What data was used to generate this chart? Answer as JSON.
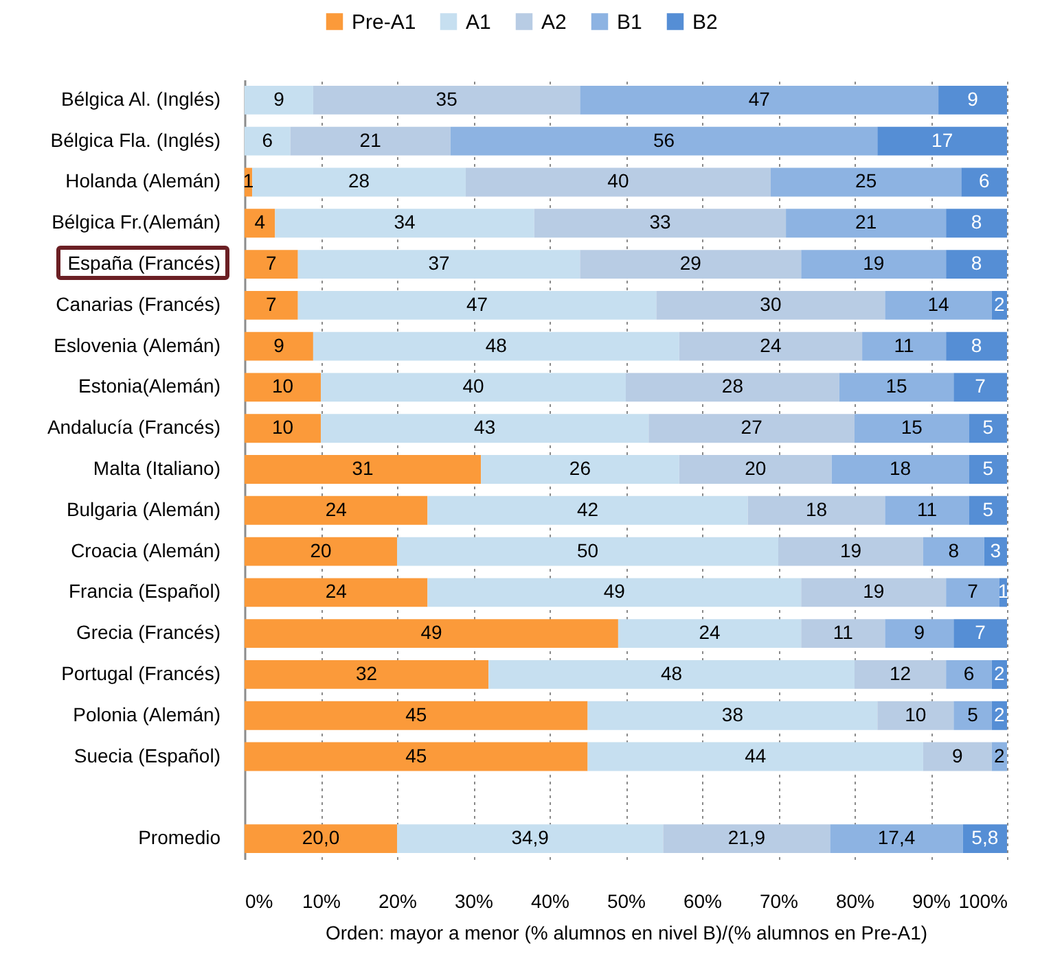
{
  "chart_data": {
    "type": "bar",
    "orientation": "horizontal",
    "stacked": true,
    "categories": [
      "Bélgica Al. (Inglés)",
      "Bélgica Fla. (Inglés)",
      "Holanda (Alemán)",
      "Bélgica Fr.(Alemán)",
      "España (Francés)",
      "Canarias (Francés)",
      "Eslovenia (Alemán)",
      "Estonia(Alemán)",
      "Andalucía (Francés)",
      "Malta (Italiano)",
      "Bulgaria (Alemán)",
      "Croacia (Alemán)",
      "Francia (Español)",
      "Grecia (Francés)",
      "Portugal (Francés)",
      "Polonia (Alemán)",
      "Suecia (Español)",
      null,
      "Promedio"
    ],
    "series": [
      {
        "name": "Pre-A1",
        "color": "#fb9a3a",
        "values": [
          null,
          null,
          1,
          4,
          7,
          7,
          9,
          10,
          10,
          31,
          24,
          20,
          24,
          49,
          32,
          45,
          45,
          null,
          20.0
        ],
        "value_labels": [
          null,
          null,
          "1",
          "4",
          "7",
          "7",
          "9",
          "10",
          "10",
          "31",
          "24",
          "20",
          "24",
          "49",
          "32",
          "45",
          "45",
          null,
          "20,0"
        ]
      },
      {
        "name": "A1",
        "color": "#c6dff0",
        "values": [
          9,
          6,
          28,
          34,
          37,
          47,
          48,
          40,
          43,
          26,
          42,
          50,
          49,
          24,
          48,
          38,
          44,
          null,
          34.9
        ],
        "value_labels": [
          "9",
          "6",
          "28",
          "34",
          "37",
          "47",
          "48",
          "40",
          "43",
          "26",
          "42",
          "50",
          "49",
          "24",
          "48",
          "38",
          "44",
          null,
          "34,9"
        ]
      },
      {
        "name": "A2",
        "color": "#b8cce4",
        "values": [
          35,
          21,
          40,
          33,
          29,
          30,
          24,
          28,
          27,
          20,
          18,
          19,
          19,
          11,
          12,
          10,
          9,
          null,
          21.9
        ],
        "value_labels": [
          "35",
          "21",
          "40",
          "33",
          "29",
          "30",
          "24",
          "28",
          "27",
          "20",
          "18",
          "19",
          "19",
          "11",
          "12",
          "10",
          "9",
          null,
          "21,9"
        ]
      },
      {
        "name": "B1",
        "color": "#8db3e2",
        "values": [
          47,
          56,
          25,
          21,
          19,
          14,
          11,
          15,
          15,
          18,
          11,
          8,
          7,
          9,
          6,
          5,
          2,
          null,
          17.4
        ],
        "value_labels": [
          "47",
          "56",
          "25",
          "21",
          "19",
          "14",
          "11",
          "15",
          "15",
          "18",
          "11",
          "8",
          "7",
          "9",
          "6",
          "5",
          "2",
          null,
          "17,4"
        ]
      },
      {
        "name": "B2",
        "color": "#558ed5",
        "values": [
          9,
          17,
          6,
          8,
          8,
          2,
          8,
          7,
          5,
          5,
          5,
          3,
          1,
          7,
          2,
          2,
          null,
          null,
          5.8
        ],
        "value_labels": [
          "9",
          "17",
          "6",
          "8",
          "8",
          "2",
          "8",
          "7",
          "5",
          "5",
          "5",
          "3",
          "1",
          "7",
          "2",
          "2",
          null,
          null,
          "5,8"
        ]
      }
    ],
    "xlim": [
      0,
      100
    ],
    "xticks": [
      {
        "value": 0,
        "label": "0%"
      },
      {
        "value": 10,
        "label": "10%"
      },
      {
        "value": 20,
        "label": "20%"
      },
      {
        "value": 30,
        "label": "30%"
      },
      {
        "value": 40,
        "label": "40%"
      },
      {
        "value": 50,
        "label": "50%"
      },
      {
        "value": 60,
        "label": "60%"
      },
      {
        "value": 70,
        "label": "70%"
      },
      {
        "value": 80,
        "label": "80%"
      },
      {
        "value": 90,
        "label": "90%"
      },
      {
        "value": 100,
        "label": "100%"
      }
    ],
    "xlabel": "Orden: mayor a menor (% alumnos en nivel B)/(% alumnos en Pre-A1)",
    "grid": "x",
    "legend": "top"
  }
}
